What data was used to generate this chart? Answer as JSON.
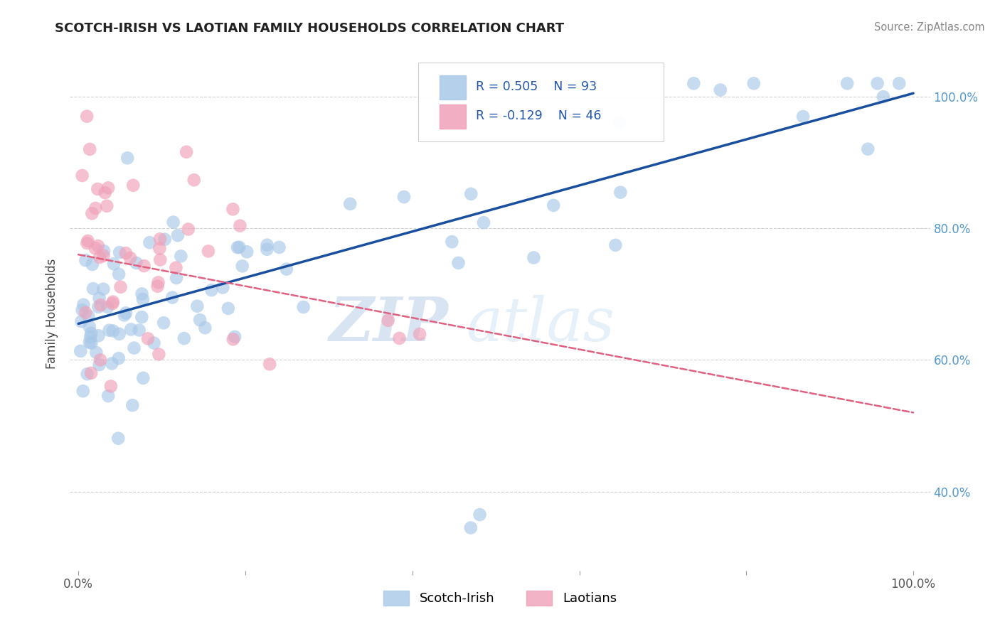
{
  "title": "SCOTCH-IRISH VS LAOTIAN FAMILY HOUSEHOLDS CORRELATION CHART",
  "source": "Source: ZipAtlas.com",
  "ylabel": "Family Households",
  "xlim": [
    -0.01,
    1.02
  ],
  "ylim": [
    0.28,
    1.06
  ],
  "xtick_vals": [
    0.0,
    0.2,
    0.4,
    0.6,
    0.8,
    1.0
  ],
  "xtick_labels": [
    "0.0%",
    "",
    "",
    "",
    "",
    "100.0%"
  ],
  "ytick_vals": [
    0.4,
    0.6,
    0.8,
    1.0
  ],
  "ytick_labels_right": [
    "40.0%",
    "60.0%",
    "80.0%",
    "100.0%"
  ],
  "scotch_irish_R": 0.505,
  "scotch_irish_N": 93,
  "laotian_R": -0.129,
  "laotian_N": 46,
  "scotch_irish_color": "#a8c8e8",
  "laotian_color": "#f0a0b8",
  "scotch_irish_line_color": "#1a4fa0",
  "laotian_line_color": "#e06080",
  "background_color": "#ffffff",
  "grid_color": "#cccccc",
  "watermark_zip": "ZIP",
  "watermark_atlas": "atlas",
  "legend_scotch_label": "Scotch-Irish",
  "legend_laotian_label": "Laotians",
  "title_fontsize": 13,
  "right_tick_color": "#5599cc"
}
